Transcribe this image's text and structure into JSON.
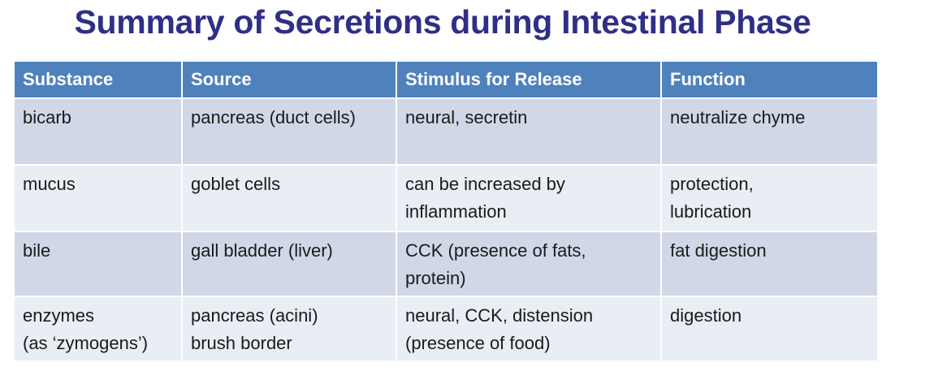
{
  "title": "Summary of Secretions during Intestinal Phase",
  "table": {
    "headers": [
      "Substance",
      "Source",
      "Stimulus for Release",
      "Function"
    ],
    "rows": [
      {
        "substance": [
          "bicarb"
        ],
        "source": [
          "pancreas (duct cells)"
        ],
        "stimulus": [
          "neural, secretin"
        ],
        "function": [
          "neutralize chyme"
        ]
      },
      {
        "substance": [
          "mucus"
        ],
        "source": [
          "goblet cells"
        ],
        "stimulus": [
          "can be increased by",
          "inflammation"
        ],
        "function": [
          "protection,",
          "lubrication"
        ]
      },
      {
        "substance": [
          "bile"
        ],
        "source": [
          "gall bladder (liver)"
        ],
        "stimulus": [
          "CCK (presence of fats,",
          "protein)"
        ],
        "function": [
          "fat digestion"
        ]
      },
      {
        "substance": [
          "enzymes",
          "(as ‘zymogens’)"
        ],
        "source": [
          "pancreas (acini)",
          "brush border"
        ],
        "stimulus": [
          "neural, CCK, distension",
          "(presence of food)"
        ],
        "function": [
          "digestion"
        ]
      }
    ]
  },
  "colors": {
    "title": "#2e2f86",
    "header_bg": "#4f81bd",
    "row_dark": "#d0d8e8",
    "row_light": "#e9edf4"
  }
}
